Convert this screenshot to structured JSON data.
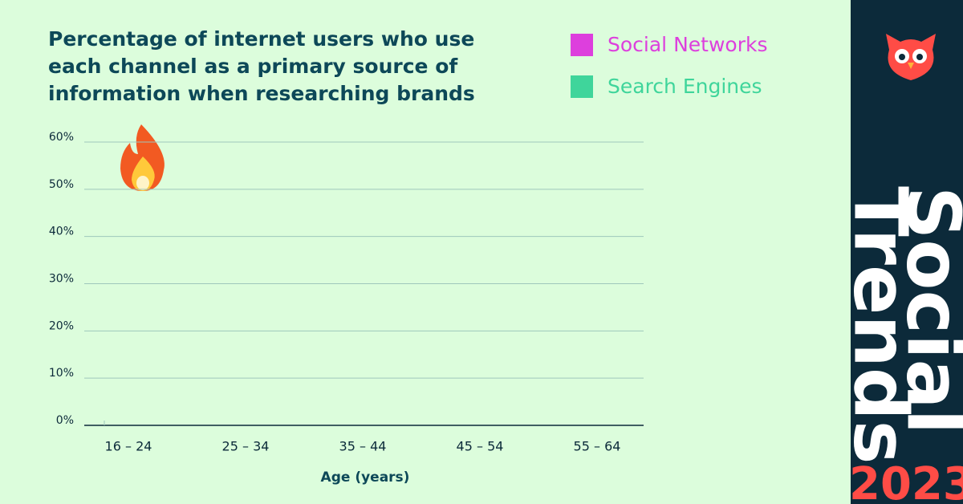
{
  "chart_data": {
    "type": "bar",
    "title": [
      "Percentage of internet users who use",
      "each channel as a primary source of",
      "information when researching brands"
    ],
    "x_label": "Age (years)",
    "categories": [
      "16 – 24",
      "25 – 34",
      "35 – 44",
      "45 – 54",
      "55 – 64"
    ],
    "series": [
      {
        "name": "Social Networks",
        "color": "#dd3fdd",
        "values": [
          null,
          null,
          null,
          null,
          null
        ]
      },
      {
        "name": "Search Engines",
        "color": "#3fd59b",
        "values": [
          null,
          null,
          null,
          null,
          null
        ]
      }
    ],
    "ylim": [
      0,
      60
    ],
    "yticks": [
      {
        "value": 0,
        "label": "0%"
      },
      {
        "value": 10,
        "label": "10%"
      },
      {
        "value": 20,
        "label": "20%"
      },
      {
        "value": 30,
        "label": "30%"
      },
      {
        "value": 40,
        "label": "40%"
      },
      {
        "value": 50,
        "label": "50%"
      },
      {
        "value": 60,
        "label": "60%"
      }
    ],
    "grid": true,
    "legend": "top-right"
  },
  "sidebar": {
    "line1": "Social",
    "line2": "Trends",
    "year": "2023"
  }
}
